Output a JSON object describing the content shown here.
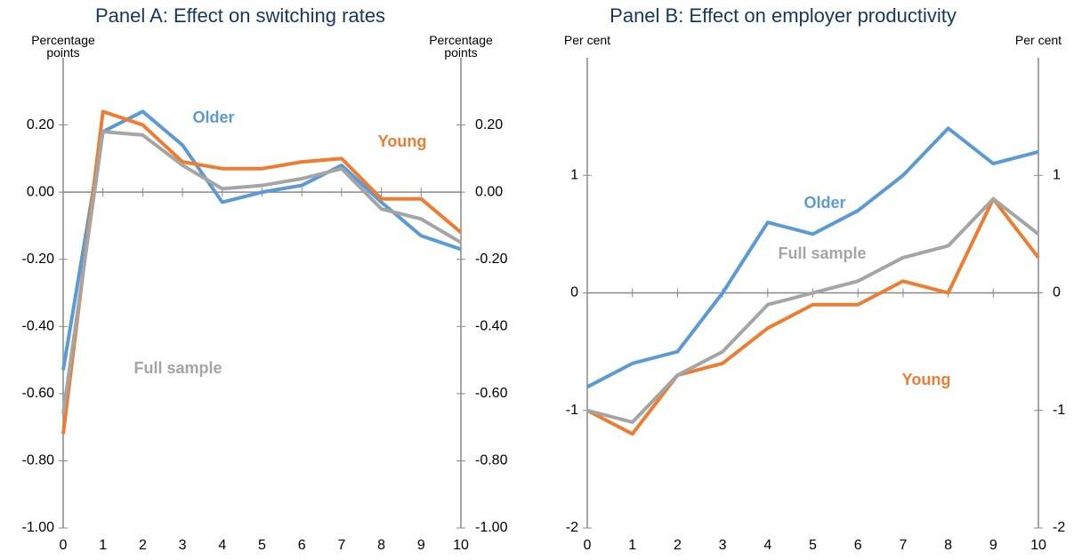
{
  "chart_data": [
    {
      "type": "line",
      "title": "Panel A: Effect on switching rates",
      "y_axis_label": "Percentage points",
      "y2_axis_label": "Percentage points",
      "x": [
        0,
        1,
        2,
        3,
        4,
        5,
        6,
        7,
        8,
        9,
        10
      ],
      "xlim": [
        0,
        10
      ],
      "xticks": [
        0,
        1,
        2,
        3,
        4,
        5,
        6,
        7,
        8,
        9,
        10
      ],
      "ylim": [
        -1,
        0.4
      ],
      "yticks": [
        {
          "value": -1,
          "label": "-1.00"
        },
        {
          "value": -0.8,
          "label": "-0.80"
        },
        {
          "value": -0.6,
          "label": "-0.60"
        },
        {
          "value": -0.4,
          "label": "-0.40"
        },
        {
          "value": -0.2,
          "label": "-0.20"
        },
        {
          "value": 0,
          "label": "0.00"
        },
        {
          "value": 0.2,
          "label": "0.20"
        }
      ],
      "y2lim": [
        -1,
        0.4
      ],
      "y2ticks": [
        {
          "value": -1,
          "label": "-1.00"
        },
        {
          "value": -0.8,
          "label": "-0.80"
        },
        {
          "value": -0.6,
          "label": "-0.60"
        },
        {
          "value": -0.4,
          "label": "-0.40"
        },
        {
          "value": -0.2,
          "label": "-0.20"
        },
        {
          "value": 0,
          "label": "0.00"
        },
        {
          "value": 0.2,
          "label": "0.20"
        }
      ],
      "series": [
        {
          "name": "Older",
          "color": "#5b9bd5",
          "values": [
            -0.53,
            0.18,
            0.24,
            0.14,
            -0.03,
            0.0,
            0.02,
            0.08,
            -0.03,
            -0.13,
            -0.17
          ]
        },
        {
          "name": "Young",
          "color": "#ed7d31",
          "values": [
            -0.72,
            0.24,
            0.2,
            0.09,
            0.07,
            0.07,
            0.09,
            0.1,
            -0.02,
            -0.02,
            -0.12
          ]
        },
        {
          "name": "Full sample",
          "color": "#a5a5a5",
          "values": [
            -0.66,
            0.18,
            0.17,
            0.08,
            0.01,
            0.02,
            0.04,
            0.07,
            -0.05,
            -0.08,
            -0.15
          ]
        }
      ]
    },
    {
      "type": "line",
      "title": "Panel B: Effect on employer productivity",
      "y_axis_label": "Per cent",
      "y2_axis_label": "Per cent",
      "x": [
        0,
        1,
        2,
        3,
        4,
        5,
        6,
        7,
        8,
        9,
        10
      ],
      "xlim": [
        0,
        10
      ],
      "xticks": [
        0,
        1,
        2,
        3,
        4,
        5,
        6,
        7,
        8,
        9,
        10
      ],
      "ylim": [
        -2,
        2
      ],
      "yticks": [
        -2,
        -1,
        0,
        1
      ],
      "y2lim": [
        -2,
        2
      ],
      "y2ticks": [
        -2,
        -1,
        0,
        1
      ],
      "series": [
        {
          "name": "Older",
          "color": "#5b9bd5",
          "values": [
            -0.8,
            -0.6,
            -0.5,
            0.0,
            0.6,
            0.5,
            0.7,
            1.0,
            1.4,
            1.1,
            1.2
          ]
        },
        {
          "name": "Young",
          "color": "#ed7d31",
          "values": [
            -1.0,
            -1.2,
            -0.7,
            -0.6,
            -0.3,
            -0.1,
            -0.1,
            0.1,
            0.0,
            0.8,
            0.3
          ]
        },
        {
          "name": "Full sample",
          "color": "#a5a5a5",
          "values": [
            -1.0,
            -1.1,
            -0.7,
            -0.5,
            -0.1,
            0.0,
            0.1,
            0.3,
            0.4,
            0.8,
            0.5
          ]
        }
      ]
    }
  ]
}
